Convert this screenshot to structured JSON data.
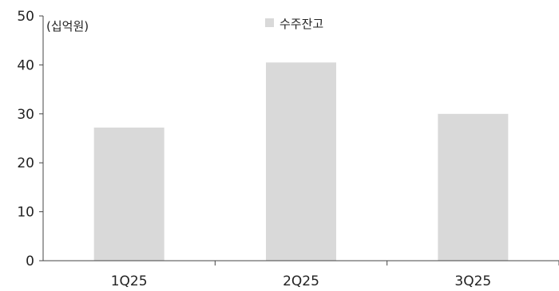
{
  "chart_data": {
    "type": "bar",
    "categories": [
      "1Q25",
      "2Q25",
      "3Q25"
    ],
    "series": [
      {
        "name": "수주잔고",
        "values": [
          27.2,
          40.5,
          30.0
        ],
        "color": "#d9d9d9"
      }
    ],
    "unit_label": "(십억원)",
    "ylim": [
      0,
      50
    ],
    "y_ticks": [
      0,
      10,
      20,
      30,
      40,
      50
    ],
    "grid": false,
    "legend_position": "top-center"
  }
}
